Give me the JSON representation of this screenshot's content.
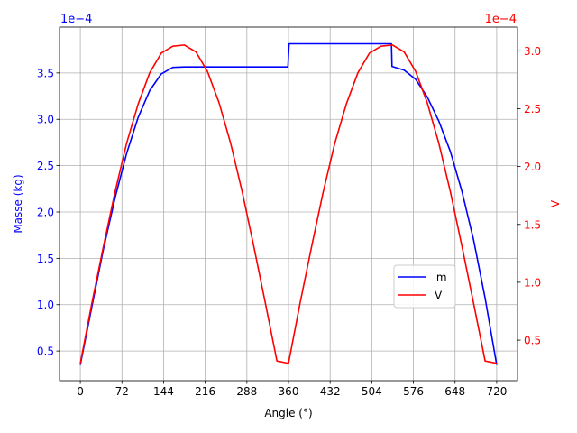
{
  "chart_data": {
    "type": "line",
    "xlabel": "Angle (°)",
    "ylabel_left": "Masse (kg)",
    "ylabel_right": "V",
    "offset_left": "1e−4",
    "offset_right": "1e−4",
    "xlim": [
      -36,
      756
    ],
    "ylim_left": [
      0.18,
      3.995
    ],
    "ylim_right": [
      0.15,
      3.205
    ],
    "xticks": [
      0,
      72,
      144,
      216,
      288,
      360,
      432,
      504,
      576,
      648,
      720
    ],
    "xtick_labels": [
      "0",
      "72",
      "144",
      "216",
      "288",
      "360",
      "432",
      "504",
      "576",
      "648",
      "720"
    ],
    "yticks_left": [
      0.5,
      1.0,
      1.5,
      2.0,
      2.5,
      3.0,
      3.5
    ],
    "ytick_labels_left": [
      "0.5",
      "1.0",
      "1.5",
      "2.0",
      "2.5",
      "3.0",
      "3.5"
    ],
    "yticks_right": [
      0.5,
      1.0,
      1.5,
      2.0,
      2.5,
      3.0
    ],
    "ytick_labels_right": [
      "0.5",
      "1.0",
      "1.5",
      "2.0",
      "2.5",
      "3.0"
    ],
    "grid": true,
    "legend_position": "lower-right",
    "series": [
      {
        "name": " m",
        "axis": "left",
        "color": "#0000ff",
        "points": [
          [
            0,
            0.35
          ],
          [
            20,
            0.98
          ],
          [
            40,
            1.6
          ],
          [
            60,
            2.15
          ],
          [
            80,
            2.63
          ],
          [
            100,
            3.02
          ],
          [
            120,
            3.31
          ],
          [
            140,
            3.49
          ],
          [
            160,
            3.56
          ],
          [
            180,
            3.565
          ],
          [
            250,
            3.565
          ],
          [
            359,
            3.565
          ],
          [
            361,
            3.815
          ],
          [
            450,
            3.815
          ],
          [
            538,
            3.815
          ],
          [
            539,
            3.57
          ],
          [
            560,
            3.53
          ],
          [
            580,
            3.43
          ],
          [
            600,
            3.24
          ],
          [
            620,
            2.98
          ],
          [
            640,
            2.65
          ],
          [
            660,
            2.22
          ],
          [
            680,
            1.7
          ],
          [
            700,
            1.07
          ],
          [
            720,
            0.35
          ]
        ]
      },
      {
        "name": "V",
        "axis": "right",
        "color": "#ff0000",
        "points": [
          [
            0,
            0.3
          ],
          [
            20,
            0.82
          ],
          [
            40,
            1.31
          ],
          [
            60,
            1.78
          ],
          [
            80,
            2.2
          ],
          [
            100,
            2.54
          ],
          [
            120,
            2.81
          ],
          [
            140,
            2.98
          ],
          [
            160,
            3.04
          ],
          [
            180,
            3.05
          ],
          [
            200,
            2.99
          ],
          [
            220,
            2.82
          ],
          [
            240,
            2.55
          ],
          [
            260,
            2.2
          ],
          [
            280,
            1.78
          ],
          [
            300,
            1.31
          ],
          [
            320,
            0.82
          ],
          [
            340,
            0.32
          ],
          [
            360,
            0.3
          ],
          [
            380,
            0.82
          ],
          [
            400,
            1.31
          ],
          [
            420,
            1.78
          ],
          [
            440,
            2.2
          ],
          [
            460,
            2.54
          ],
          [
            480,
            2.81
          ],
          [
            500,
            2.98
          ],
          [
            520,
            3.04
          ],
          [
            540,
            3.05
          ],
          [
            560,
            2.99
          ],
          [
            580,
            2.82
          ],
          [
            600,
            2.55
          ],
          [
            620,
            2.2
          ],
          [
            640,
            1.78
          ],
          [
            660,
            1.31
          ],
          [
            680,
            0.82
          ],
          [
            700,
            0.32
          ],
          [
            720,
            0.3
          ]
        ]
      }
    ]
  },
  "colors": {
    "left_axis": "#0000ff",
    "right_axis": "#ff0000",
    "grid": "#b0b0b0",
    "frame": "#000000"
  }
}
